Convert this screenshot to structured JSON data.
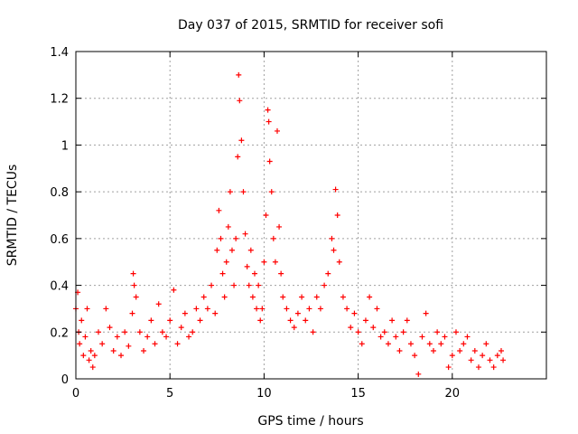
{
  "chart_data": {
    "type": "scatter",
    "title": "Day 037 of 2015, SRMTID for receiver sofi",
    "xlabel": "GPS time / hours",
    "ylabel": "SRMTID / TECUs",
    "xlim": [
      0,
      25
    ],
    "ylim": [
      0,
      1.4
    ],
    "x_ticks": [
      0,
      5,
      10,
      15,
      20
    ],
    "y_ticks": [
      0,
      0.2,
      0.4,
      0.6,
      0.8,
      1,
      1.2,
      1.4
    ],
    "x_tick_labels": [
      "0",
      "5",
      "10",
      "15",
      "20"
    ],
    "y_tick_labels": [
      "0",
      "0.2",
      "0.4",
      "0.6",
      "0.8",
      "1",
      "1.2",
      "1.4"
    ],
    "grid": true,
    "marker": "+",
    "series": [
      {
        "name": "SRMTID",
        "color": "#ff0000",
        "x": [
          0.0,
          0.1,
          0.15,
          0.2,
          0.3,
          0.4,
          0.5,
          0.6,
          0.7,
          0.8,
          0.9,
          1.0,
          1.2,
          1.4,
          1.6,
          1.8,
          2.0,
          2.2,
          2.4,
          2.6,
          2.8,
          3.0,
          3.05,
          3.1,
          3.2,
          3.4,
          3.6,
          3.8,
          4.0,
          4.2,
          4.4,
          4.6,
          4.8,
          5.0,
          5.2,
          5.4,
          5.6,
          5.8,
          6.0,
          6.2,
          6.4,
          6.6,
          6.8,
          7.0,
          7.2,
          7.4,
          7.5,
          7.6,
          7.7,
          7.8,
          7.9,
          8.0,
          8.1,
          8.2,
          8.3,
          8.4,
          8.5,
          8.6,
          8.65,
          8.7,
          8.8,
          8.9,
          9.0,
          9.1,
          9.2,
          9.3,
          9.4,
          9.5,
          9.6,
          9.7,
          9.8,
          9.9,
          10.0,
          10.1,
          10.2,
          10.25,
          10.3,
          10.4,
          10.5,
          10.6,
          10.7,
          10.8,
          10.9,
          11.0,
          11.2,
          11.4,
          11.6,
          11.8,
          12.0,
          12.2,
          12.4,
          12.6,
          12.8,
          13.0,
          13.2,
          13.4,
          13.6,
          13.7,
          13.8,
          13.9,
          14.0,
          14.2,
          14.4,
          14.6,
          14.8,
          15.0,
          15.2,
          15.4,
          15.6,
          15.8,
          16.0,
          16.2,
          16.4,
          16.6,
          16.8,
          17.0,
          17.2,
          17.4,
          17.6,
          17.8,
          18.0,
          18.2,
          18.4,
          18.6,
          18.8,
          19.0,
          19.2,
          19.4,
          19.6,
          19.8,
          20.0,
          20.2,
          20.4,
          20.6,
          20.8,
          21.0,
          21.2,
          21.4,
          21.6,
          21.8,
          22.0,
          22.2,
          22.4,
          22.6,
          22.7
        ],
        "y": [
          0.3,
          0.37,
          0.2,
          0.15,
          0.25,
          0.1,
          0.18,
          0.3,
          0.08,
          0.12,
          0.05,
          0.1,
          0.2,
          0.15,
          0.3,
          0.22,
          0.12,
          0.18,
          0.1,
          0.2,
          0.14,
          0.28,
          0.45,
          0.4,
          0.35,
          0.2,
          0.12,
          0.18,
          0.25,
          0.15,
          0.32,
          0.2,
          0.18,
          0.25,
          0.38,
          0.15,
          0.22,
          0.28,
          0.18,
          0.2,
          0.3,
          0.25,
          0.35,
          0.3,
          0.4,
          0.28,
          0.55,
          0.72,
          0.6,
          0.45,
          0.35,
          0.5,
          0.65,
          0.8,
          0.55,
          0.4,
          0.6,
          0.95,
          1.3,
          1.19,
          1.02,
          0.8,
          0.62,
          0.48,
          0.4,
          0.55,
          0.35,
          0.45,
          0.3,
          0.4,
          0.25,
          0.3,
          0.5,
          0.7,
          1.15,
          1.1,
          0.93,
          0.8,
          0.6,
          0.5,
          1.06,
          0.65,
          0.45,
          0.35,
          0.3,
          0.25,
          0.22,
          0.28,
          0.35,
          0.25,
          0.3,
          0.2,
          0.35,
          0.3,
          0.4,
          0.45,
          0.6,
          0.55,
          0.81,
          0.7,
          0.5,
          0.35,
          0.3,
          0.22,
          0.28,
          0.2,
          0.15,
          0.25,
          0.35,
          0.22,
          0.3,
          0.18,
          0.2,
          0.15,
          0.25,
          0.18,
          0.12,
          0.2,
          0.25,
          0.15,
          0.1,
          0.02,
          0.18,
          0.28,
          0.15,
          0.12,
          0.2,
          0.15,
          0.18,
          0.05,
          0.1,
          0.2,
          0.12,
          0.15,
          0.18,
          0.08,
          0.12,
          0.05,
          0.1,
          0.15,
          0.08,
          0.05,
          0.1,
          0.12,
          0.08
        ]
      }
    ]
  }
}
